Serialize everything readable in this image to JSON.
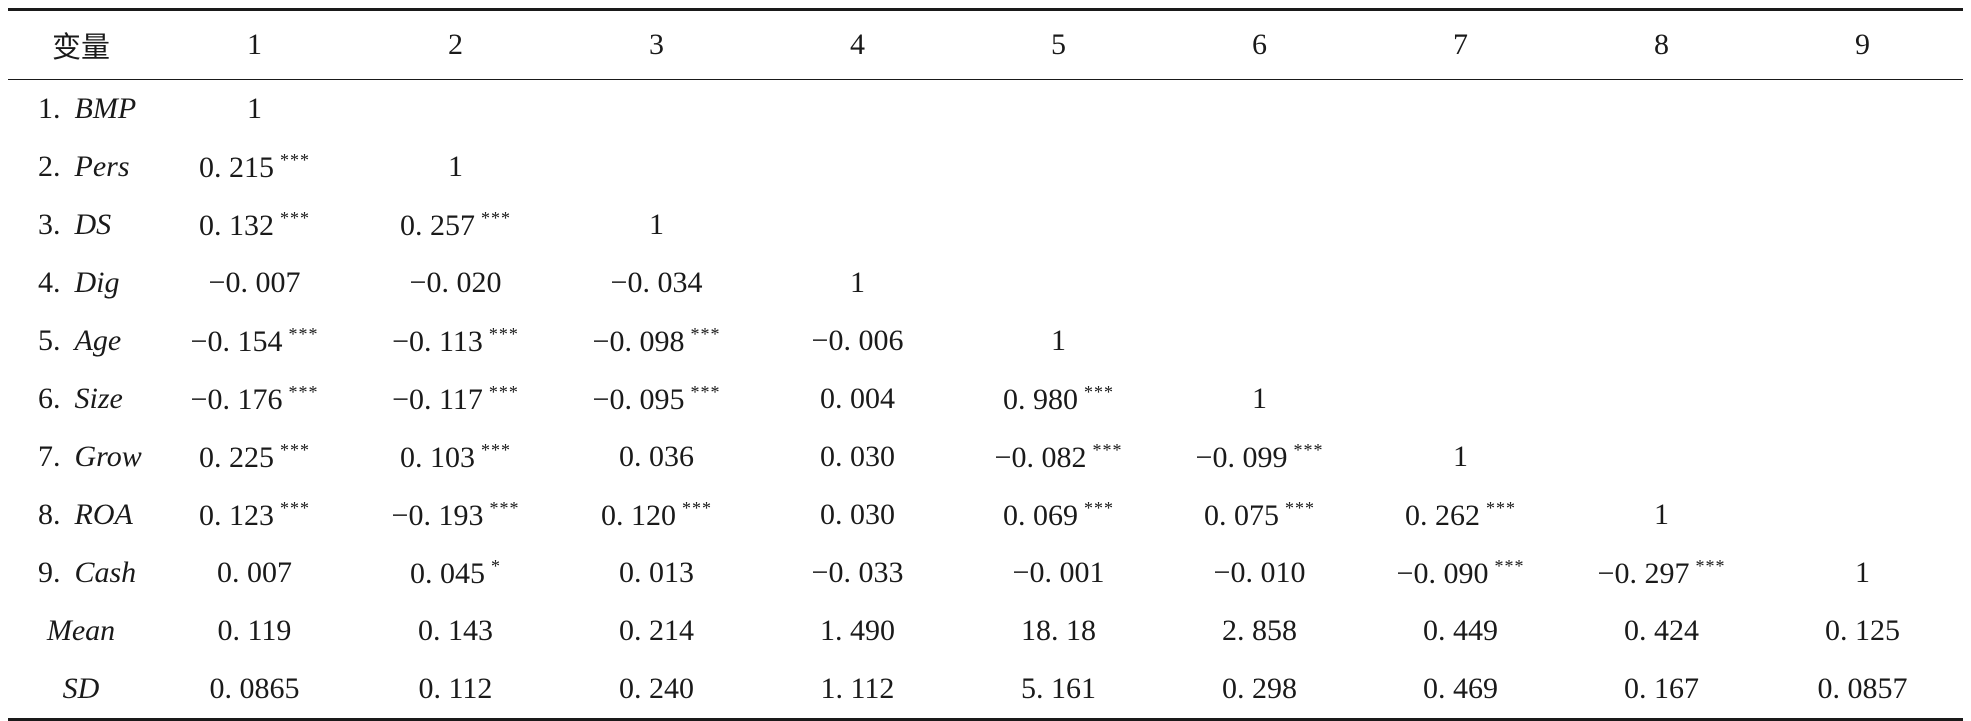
{
  "table": {
    "header": {
      "label": "变量",
      "columns": [
        "1",
        "2",
        "3",
        "4",
        "5",
        "6",
        "7",
        "8",
        "9"
      ]
    },
    "rows": [
      {
        "index": "1.",
        "name": "BMP",
        "cells": [
          {
            "v": "1",
            "s": ""
          },
          null,
          null,
          null,
          null,
          null,
          null,
          null,
          null
        ]
      },
      {
        "index": "2.",
        "name": "Pers",
        "cells": [
          {
            "v": "0. 215",
            "s": "***"
          },
          {
            "v": "1",
            "s": ""
          },
          null,
          null,
          null,
          null,
          null,
          null,
          null
        ]
      },
      {
        "index": "3.",
        "name": "DS",
        "cells": [
          {
            "v": "0. 132",
            "s": "***"
          },
          {
            "v": "0. 257",
            "s": "***"
          },
          {
            "v": "1",
            "s": ""
          },
          null,
          null,
          null,
          null,
          null,
          null
        ]
      },
      {
        "index": "4.",
        "name": "Dig",
        "cells": [
          {
            "v": "−0. 007",
            "s": ""
          },
          {
            "v": "−0. 020",
            "s": ""
          },
          {
            "v": "−0. 034",
            "s": ""
          },
          {
            "v": "1",
            "s": ""
          },
          null,
          null,
          null,
          null,
          null
        ]
      },
      {
        "index": "5.",
        "name": "Age",
        "cells": [
          {
            "v": "−0. 154",
            "s": "***"
          },
          {
            "v": "−0. 113",
            "s": "***"
          },
          {
            "v": "−0. 098",
            "s": "***"
          },
          {
            "v": "−0. 006",
            "s": ""
          },
          {
            "v": "1",
            "s": ""
          },
          null,
          null,
          null,
          null
        ]
      },
      {
        "index": "6.",
        "name": "Size",
        "cells": [
          {
            "v": "−0. 176",
            "s": "***"
          },
          {
            "v": "−0. 117",
            "s": "***"
          },
          {
            "v": "−0. 095",
            "s": "***"
          },
          {
            "v": "0. 004",
            "s": ""
          },
          {
            "v": "0. 980",
            "s": "***"
          },
          {
            "v": "1",
            "s": ""
          },
          null,
          null,
          null
        ]
      },
      {
        "index": "7.",
        "name": "Grow",
        "cells": [
          {
            "v": "0. 225",
            "s": "***"
          },
          {
            "v": "0. 103",
            "s": "***"
          },
          {
            "v": "0. 036",
            "s": ""
          },
          {
            "v": "0. 030",
            "s": ""
          },
          {
            "v": "−0. 082",
            "s": "***"
          },
          {
            "v": "−0. 099",
            "s": "***"
          },
          {
            "v": "1",
            "s": ""
          },
          null,
          null
        ]
      },
      {
        "index": "8.",
        "name": "ROA",
        "cells": [
          {
            "v": "0. 123",
            "s": "***"
          },
          {
            "v": "−0. 193",
            "s": "***"
          },
          {
            "v": "0. 120",
            "s": "***"
          },
          {
            "v": "0. 030",
            "s": ""
          },
          {
            "v": "0. 069",
            "s": "***"
          },
          {
            "v": "0. 075",
            "s": "***"
          },
          {
            "v": "0. 262",
            "s": "***"
          },
          {
            "v": "1",
            "s": ""
          },
          null
        ]
      },
      {
        "index": "9.",
        "name": "Cash",
        "cells": [
          {
            "v": "0. 007",
            "s": ""
          },
          {
            "v": "0. 045",
            "s": "*"
          },
          {
            "v": "0. 013",
            "s": ""
          },
          {
            "v": "−0. 033",
            "s": ""
          },
          {
            "v": "−0. 001",
            "s": ""
          },
          {
            "v": "−0. 010",
            "s": ""
          },
          {
            "v": "−0. 090",
            "s": "***"
          },
          {
            "v": "−0. 297",
            "s": "***"
          },
          {
            "v": "1",
            "s": ""
          }
        ]
      },
      {
        "index": "",
        "name": "Mean",
        "cells": [
          {
            "v": "0. 119",
            "s": ""
          },
          {
            "v": "0. 143",
            "s": ""
          },
          {
            "v": "0. 214",
            "s": ""
          },
          {
            "v": "1. 490",
            "s": ""
          },
          {
            "v": "18. 18",
            "s": ""
          },
          {
            "v": "2. 858",
            "s": ""
          },
          {
            "v": "0. 449",
            "s": ""
          },
          {
            "v": "0. 424",
            "s": ""
          },
          {
            "v": "0. 125",
            "s": ""
          }
        ]
      },
      {
        "index": "",
        "name": "SD",
        "cells": [
          {
            "v": "0. 0865",
            "s": ""
          },
          {
            "v": "0. 112",
            "s": ""
          },
          {
            "v": "0. 240",
            "s": ""
          },
          {
            "v": "1. 112",
            "s": ""
          },
          {
            "v": "5. 161",
            "s": ""
          },
          {
            "v": "0. 298",
            "s": ""
          },
          {
            "v": "0. 469",
            "s": ""
          },
          {
            "v": "0. 167",
            "s": ""
          },
          {
            "v": "0. 0857",
            "s": ""
          }
        ]
      }
    ]
  }
}
